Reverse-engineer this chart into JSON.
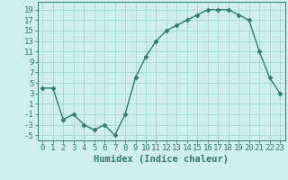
{
  "x": [
    0,
    1,
    2,
    3,
    4,
    5,
    6,
    7,
    8,
    9,
    10,
    11,
    12,
    13,
    14,
    15,
    16,
    17,
    18,
    19,
    20,
    21,
    22,
    23
  ],
  "y": [
    4,
    4,
    -2,
    -1,
    -3,
    -4,
    -3,
    -5,
    -1,
    6,
    10,
    13,
    15,
    16,
    17,
    18,
    19,
    19,
    19,
    18,
    17,
    11,
    6,
    3
  ],
  "line_color": "#2e7d6e",
  "marker": "D",
  "marker_size": 2.5,
  "bg_color": "#cff0ea",
  "grid_color": "#a0d8d0",
  "xlabel": "Humidex (Indice chaleur)",
  "xlim": [
    -0.5,
    23.5
  ],
  "ylim": [
    -6,
    20.5
  ],
  "yticks": [
    -5,
    -3,
    -1,
    1,
    3,
    5,
    7,
    9,
    11,
    13,
    15,
    17,
    19
  ],
  "xticks": [
    0,
    1,
    2,
    3,
    4,
    5,
    6,
    7,
    8,
    9,
    10,
    11,
    12,
    13,
    14,
    15,
    16,
    17,
    18,
    19,
    20,
    21,
    22,
    23
  ],
  "tick_color": "#2e7d6e",
  "label_color": "#2e7d6e",
  "xlabel_fontsize": 7.5,
  "tick_fontsize": 6.5
}
